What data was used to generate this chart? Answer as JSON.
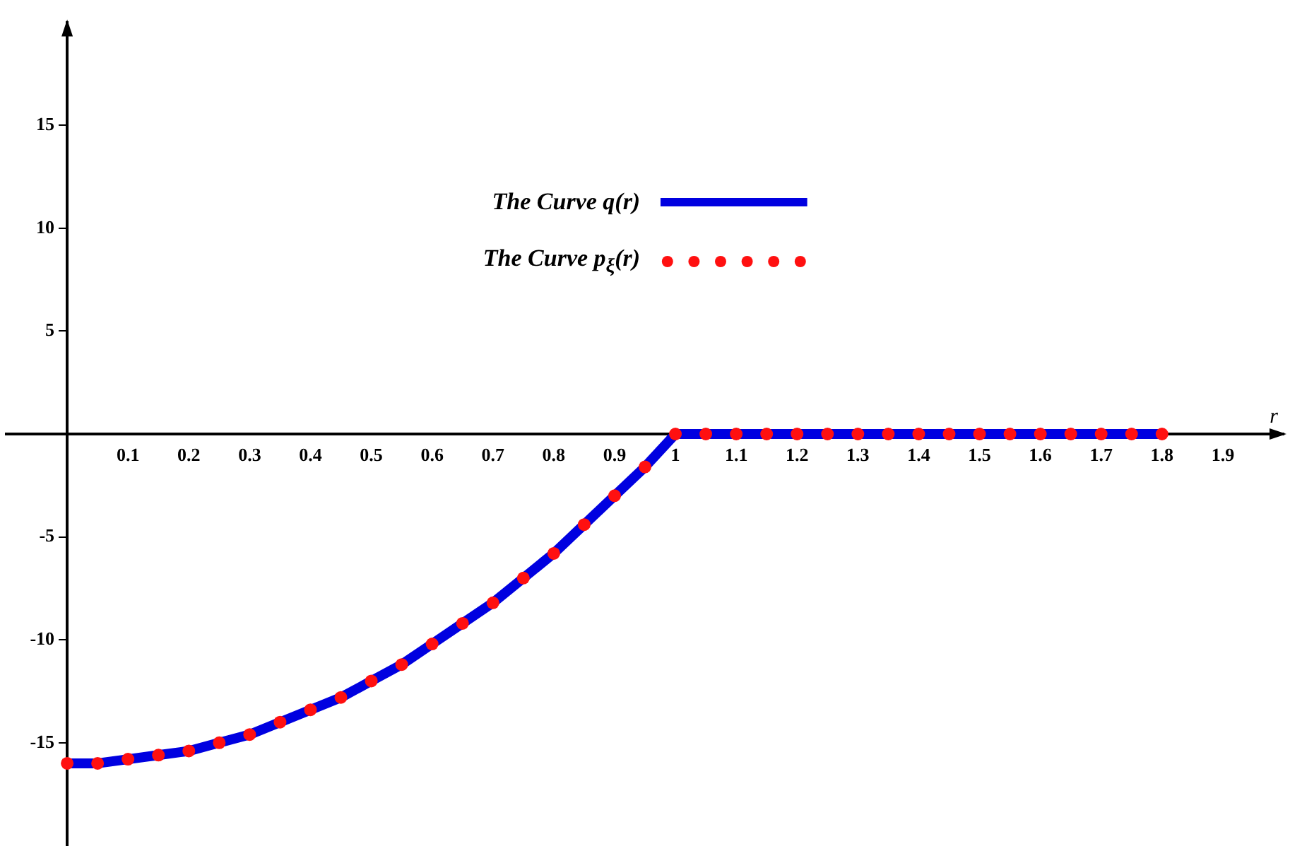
{
  "chart_data": {
    "type": "line",
    "xlabel": "r",
    "x": [
      0,
      0.05,
      0.1,
      0.15,
      0.2,
      0.25,
      0.3,
      0.35,
      0.4,
      0.45,
      0.5,
      0.55,
      0.6,
      0.65,
      0.7,
      0.75,
      0.8,
      0.85,
      0.9,
      0.95,
      1,
      1.05,
      1.1,
      1.15,
      1.2,
      1.25,
      1.3,
      1.35,
      1.4,
      1.45,
      1.5,
      1.55,
      1.6,
      1.65,
      1.7,
      1.75,
      1.8
    ],
    "series": [
      {
        "name": "The Curve q(r)",
        "color": "#0000e0",
        "type": "line",
        "marker": "none",
        "values": [
          -16,
          -16,
          -15.8,
          -15.6,
          -15.4,
          -15,
          -14.6,
          -14,
          -13.4,
          -12.8,
          -12,
          -11.2,
          -10.2,
          -9.2,
          -8.2,
          -7,
          -5.8,
          -4.4,
          -3,
          -1.6,
          0,
          0,
          0,
          0,
          0,
          0,
          0,
          0,
          0,
          0,
          0,
          0,
          0,
          0,
          0,
          0,
          0
        ]
      },
      {
        "name": "The Curve p$_{ξ}$(r)",
        "color": "#ff1010",
        "type": "scatter",
        "marker": "circle",
        "values": [
          -16,
          -16,
          -15.8,
          -15.6,
          -15.4,
          -15,
          -14.6,
          -14,
          -13.4,
          -12.8,
          -12,
          -11.2,
          -10.2,
          -9.2,
          -8.2,
          -7,
          -5.8,
          -4.4,
          -3,
          -1.6,
          0,
          0,
          0,
          0,
          0,
          0,
          0,
          0,
          0,
          0,
          0,
          0,
          0,
          0,
          0,
          0,
          0
        ]
      }
    ],
    "xlim": [
      -0.1,
      2.0
    ],
    "ylim": [
      -20,
      20
    ],
    "xticks": [
      0.1,
      0.2,
      0.3,
      0.4,
      0.5,
      0.6,
      0.7,
      0.8,
      0.9,
      1,
      1.1,
      1.2,
      1.3,
      1.4,
      1.5,
      1.6,
      1.7,
      1.8,
      1.9
    ],
    "yticks": [
      -15,
      -10,
      -5,
      5,
      10,
      15
    ],
    "grid": false,
    "legend": "top"
  }
}
